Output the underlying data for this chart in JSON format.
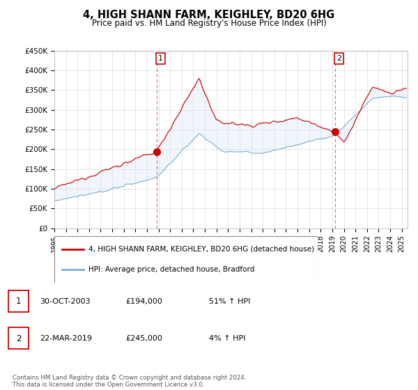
{
  "title": "4, HIGH SHANN FARM, KEIGHLEY, BD20 6HG",
  "subtitle": "Price paid vs. HM Land Registry's House Price Index (HPI)",
  "legend_line1": "4, HIGH SHANN FARM, KEIGHLEY, BD20 6HG (detached house)",
  "legend_line2": "HPI: Average price, detached house, Bradford",
  "footnote": "Contains HM Land Registry data © Crown copyright and database right 2024.\nThis data is licensed under the Open Government Licence v3.0.",
  "sale1_label": "1",
  "sale1_date": "30-OCT-2003",
  "sale1_price": "£194,000",
  "sale1_hpi": "51% ↑ HPI",
  "sale2_label": "2",
  "sale2_date": "22-MAR-2019",
  "sale2_price": "£245,000",
  "sale2_hpi": "4% ↑ HPI",
  "sale1_year": 2003.83,
  "sale2_year": 2019.22,
  "sale1_value": 194000,
  "sale2_value": 245000,
  "ylim_min": 0,
  "ylim_max": 450000,
  "xlim_min": 1995,
  "xlim_max": 2025.5,
  "red_color": "#cc0000",
  "blue_color": "#7aaed6",
  "fill_color": "#d0e4f5",
  "background_color": "#ffffff",
  "grid_color": "#cccccc"
}
